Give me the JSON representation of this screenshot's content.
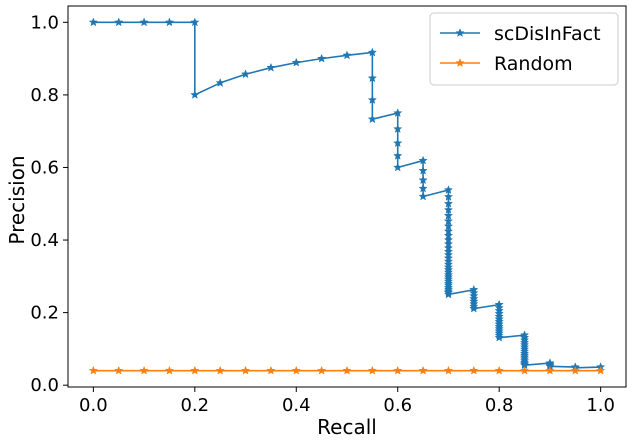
{
  "chart_data": {
    "type": "line",
    "xlabel": "Recall",
    "ylabel": "Precision",
    "xlim": [
      -0.05,
      1.05
    ],
    "ylim": [
      -0.005,
      1.045
    ],
    "xticks": [
      "0.0",
      "0.2",
      "0.4",
      "0.6",
      "0.8",
      "1.0"
    ],
    "yticks": [
      "0.0",
      "0.2",
      "0.4",
      "0.6",
      "0.8",
      "1.0"
    ],
    "grid": false,
    "legend_position": "top-right",
    "series": [
      {
        "name": "scDisInFact",
        "color": "#1f77b4",
        "marker": "star",
        "points": [
          [
            0.0,
            1.0
          ],
          [
            0.05,
            1.0
          ],
          [
            0.1,
            1.0
          ],
          [
            0.15,
            1.0
          ],
          [
            0.2,
            1.0
          ],
          [
            0.2,
            0.8
          ],
          [
            0.25,
            0.833
          ],
          [
            0.3,
            0.857
          ],
          [
            0.35,
            0.875
          ],
          [
            0.4,
            0.889
          ],
          [
            0.45,
            0.9
          ],
          [
            0.5,
            0.909
          ],
          [
            0.55,
            0.917
          ],
          [
            0.55,
            0.846
          ],
          [
            0.55,
            0.786
          ],
          [
            0.55,
            0.733
          ],
          [
            0.6,
            0.75
          ],
          [
            0.6,
            0.706
          ],
          [
            0.6,
            0.667
          ],
          [
            0.6,
            0.632
          ],
          [
            0.6,
            0.6
          ],
          [
            0.65,
            0.619
          ],
          [
            0.65,
            0.591
          ],
          [
            0.65,
            0.565
          ],
          [
            0.65,
            0.542
          ],
          [
            0.65,
            0.52
          ],
          [
            0.7,
            0.538
          ],
          [
            0.7,
            0.519
          ],
          [
            0.7,
            0.5
          ],
          [
            0.7,
            0.483
          ],
          [
            0.7,
            0.467
          ],
          [
            0.7,
            0.452
          ],
          [
            0.7,
            0.438
          ],
          [
            0.7,
            0.424
          ],
          [
            0.7,
            0.412
          ],
          [
            0.7,
            0.4
          ],
          [
            0.7,
            0.389
          ],
          [
            0.7,
            0.378
          ],
          [
            0.7,
            0.368
          ],
          [
            0.7,
            0.359
          ],
          [
            0.7,
            0.35
          ],
          [
            0.7,
            0.341
          ],
          [
            0.7,
            0.333
          ],
          [
            0.7,
            0.325
          ],
          [
            0.7,
            0.318
          ],
          [
            0.7,
            0.311
          ],
          [
            0.7,
            0.304
          ],
          [
            0.7,
            0.298
          ],
          [
            0.7,
            0.292
          ],
          [
            0.7,
            0.286
          ],
          [
            0.7,
            0.28
          ],
          [
            0.7,
            0.275
          ],
          [
            0.7,
            0.269
          ],
          [
            0.7,
            0.264
          ],
          [
            0.7,
            0.259
          ],
          [
            0.7,
            0.255
          ],
          [
            0.7,
            0.25
          ],
          [
            0.75,
            0.263
          ],
          [
            0.75,
            0.254
          ],
          [
            0.75,
            0.246
          ],
          [
            0.75,
            0.238
          ],
          [
            0.75,
            0.231
          ],
          [
            0.75,
            0.224
          ],
          [
            0.75,
            0.217
          ],
          [
            0.75,
            0.211
          ],
          [
            0.8,
            0.222
          ],
          [
            0.8,
            0.213
          ],
          [
            0.8,
            0.205
          ],
          [
            0.8,
            0.197
          ],
          [
            0.8,
            0.189
          ],
          [
            0.8,
            0.182
          ],
          [
            0.8,
            0.175
          ],
          [
            0.8,
            0.168
          ],
          [
            0.8,
            0.161
          ],
          [
            0.8,
            0.155
          ],
          [
            0.8,
            0.149
          ],
          [
            0.8,
            0.143
          ],
          [
            0.8,
            0.137
          ],
          [
            0.8,
            0.131
          ],
          [
            0.85,
            0.138
          ],
          [
            0.85,
            0.131
          ],
          [
            0.85,
            0.124
          ],
          [
            0.85,
            0.117
          ],
          [
            0.85,
            0.111
          ],
          [
            0.85,
            0.105
          ],
          [
            0.85,
            0.099
          ],
          [
            0.85,
            0.093
          ],
          [
            0.85,
            0.087
          ],
          [
            0.85,
            0.082
          ],
          [
            0.85,
            0.077
          ],
          [
            0.85,
            0.072
          ],
          [
            0.85,
            0.067
          ],
          [
            0.85,
            0.062
          ],
          [
            0.85,
            0.058
          ],
          [
            0.85,
            0.055
          ],
          [
            0.9,
            0.061
          ],
          [
            0.9,
            0.058
          ],
          [
            0.9,
            0.055
          ],
          [
            0.9,
            0.052
          ],
          [
            0.95,
            0.05
          ],
          [
            0.95,
            0.048
          ],
          [
            1.0,
            0.05
          ]
        ]
      },
      {
        "name": "Random",
        "color": "#ff7f0e",
        "marker": "star",
        "points": [
          [
            0.0,
            0.04
          ],
          [
            0.05,
            0.04
          ],
          [
            0.1,
            0.04
          ],
          [
            0.15,
            0.04
          ],
          [
            0.2,
            0.04
          ],
          [
            0.25,
            0.04
          ],
          [
            0.3,
            0.04
          ],
          [
            0.35,
            0.04
          ],
          [
            0.4,
            0.04
          ],
          [
            0.45,
            0.04
          ],
          [
            0.5,
            0.04
          ],
          [
            0.55,
            0.04
          ],
          [
            0.6,
            0.04
          ],
          [
            0.65,
            0.04
          ],
          [
            0.7,
            0.04
          ],
          [
            0.75,
            0.04
          ],
          [
            0.8,
            0.04
          ],
          [
            0.85,
            0.04
          ],
          [
            0.9,
            0.04
          ],
          [
            0.95,
            0.04
          ],
          [
            1.0,
            0.04
          ]
        ]
      }
    ]
  }
}
